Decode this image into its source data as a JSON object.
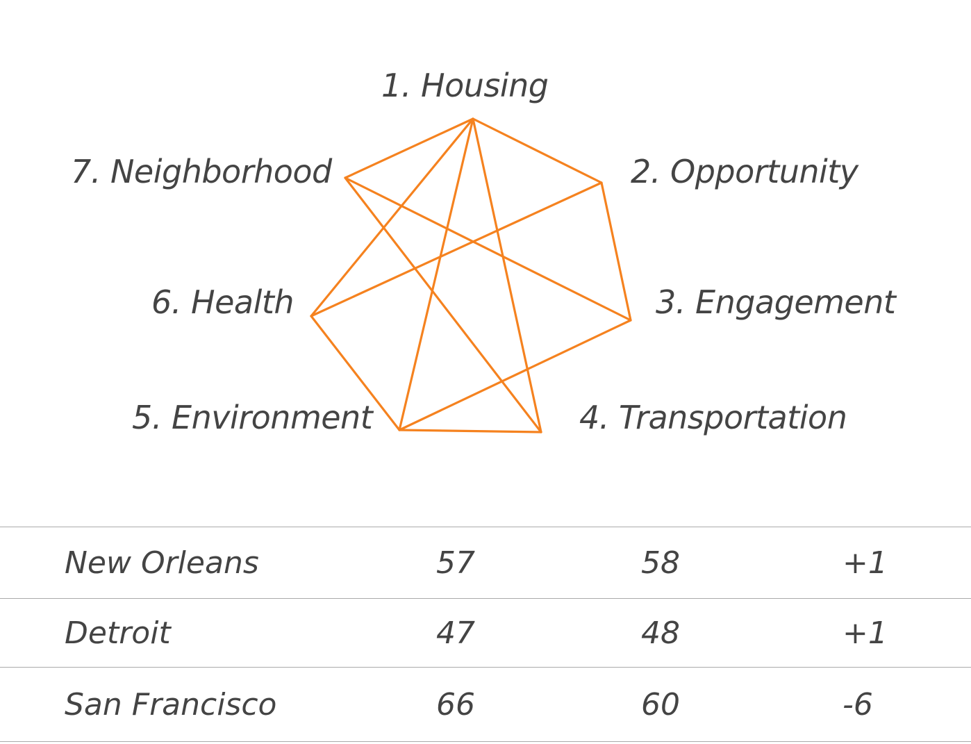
{
  "diagram": {
    "nodes": [
      {
        "id": 1,
        "label": "1. Housing"
      },
      {
        "id": 2,
        "label": "2. Opportunity"
      },
      {
        "id": 3,
        "label": "3. Engagement"
      },
      {
        "id": 4,
        "label": "4. Transportation"
      },
      {
        "id": 5,
        "label": "5. Environment"
      },
      {
        "id": 6,
        "label": "6. Health"
      },
      {
        "id": 7,
        "label": "7. Neighborhood"
      }
    ],
    "edges": [
      [
        1,
        2
      ],
      [
        2,
        3
      ],
      [
        3,
        5
      ],
      [
        5,
        4
      ],
      [
        4,
        7
      ],
      [
        7,
        1
      ],
      [
        1,
        6
      ],
      [
        6,
        5
      ],
      [
        1,
        5
      ],
      [
        1,
        4
      ],
      [
        2,
        6
      ],
      [
        7,
        3
      ]
    ],
    "line_color": "#f5821f"
  },
  "table": {
    "rows": [
      {
        "city": "New Orleans",
        "a": "57",
        "b": "58",
        "change": "+1"
      },
      {
        "city": "Detroit",
        "a": "47",
        "b": "48",
        "change": "+1"
      },
      {
        "city": "San Francisco",
        "a": "66",
        "b": "60",
        "change": "-6"
      }
    ]
  }
}
